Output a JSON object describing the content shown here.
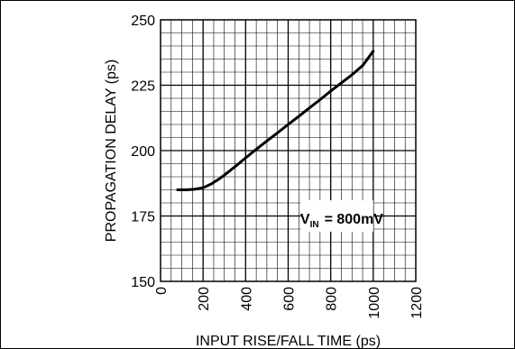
{
  "chart_data": {
    "type": "line",
    "xlabel": "INPUT RISE/FALL TIME (ps)",
    "ylabel": "PROPAGATION DELAY (ps)",
    "xlim": [
      0,
      1200
    ],
    "ylim": [
      150,
      250
    ],
    "xticks": [
      "0",
      "200",
      "400",
      "600",
      "800",
      "1000",
      "1200"
    ],
    "yticks": [
      "150",
      "175",
      "200",
      "225",
      "250"
    ],
    "grid": true,
    "annotation": {
      "main": "V",
      "subscript": "IN",
      "value": "= 800mV"
    },
    "series": [
      {
        "x": [
          80,
          120,
          160,
          200,
          240,
          280,
          320,
          360,
          400,
          450,
          500,
          550,
          600,
          650,
          700,
          750,
          800,
          850,
          900,
          950,
          1000
        ],
        "y": [
          185,
          185,
          185.2,
          185.8,
          187.3,
          189.4,
          191.9,
          194.5,
          197.2,
          200.5,
          203.7,
          206.8,
          210.0,
          213.1,
          216.3,
          219.5,
          222.8,
          225.9,
          229.0,
          232.5,
          238.0
        ]
      }
    ]
  }
}
